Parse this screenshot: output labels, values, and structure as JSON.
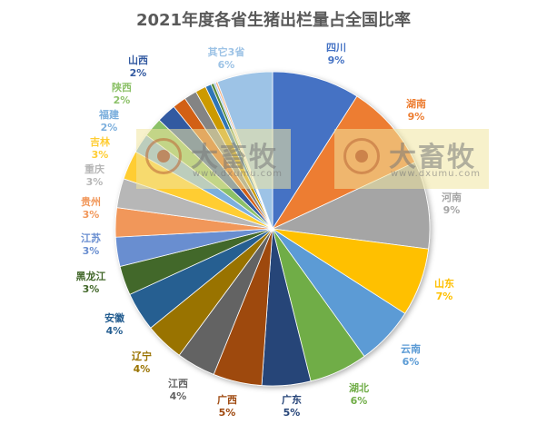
{
  "chart_data": {
    "type": "pie",
    "title": "2021年度各省生猪出栏量占全国比率",
    "slices": [
      {
        "name": "四川",
        "label": "9%",
        "value": 9,
        "color": "#4472C4",
        "label_color": "#4472C4"
      },
      {
        "name": "湖南",
        "label": "9%",
        "value": 9,
        "color": "#ED7D31",
        "label_color": "#ED7D31"
      },
      {
        "name": "河南",
        "label": "9%",
        "value": 9,
        "color": "#A5A5A5",
        "label_color": "#A5A5A5"
      },
      {
        "name": "山东",
        "label": "7%",
        "value": 7,
        "color": "#FFC000",
        "label_color": "#FFC000"
      },
      {
        "name": "云南",
        "label": "6%",
        "value": 6,
        "color": "#5B9BD5",
        "label_color": "#5B9BD5"
      },
      {
        "name": "湖北",
        "label": "6%",
        "value": 6,
        "color": "#70AD47",
        "label_color": "#70AD47"
      },
      {
        "name": "广东",
        "label": "5%",
        "value": 5,
        "color": "#264478",
        "label_color": "#264478"
      },
      {
        "name": "广西",
        "label": "5%",
        "value": 5,
        "color": "#9E480E",
        "label_color": "#9E480E"
      },
      {
        "name": "江西",
        "label": "4%",
        "value": 4,
        "color": "#636363",
        "label_color": "#636363"
      },
      {
        "name": "辽宁",
        "label": "4%",
        "value": 4,
        "color": "#997300",
        "label_color": "#997300"
      },
      {
        "name": "安徽",
        "label": "4%",
        "value": 4,
        "color": "#255E91",
        "label_color": "#255E91"
      },
      {
        "name": "黑龙江",
        "label": "3%",
        "value": 3,
        "color": "#43682B",
        "label_color": "#43682B"
      },
      {
        "name": "江苏",
        "label": "3%",
        "value": 3,
        "color": "#698ED0",
        "label_color": "#698ED0"
      },
      {
        "name": "贵州",
        "label": "3%",
        "value": 3,
        "color": "#F1975A",
        "label_color": "#F1975A"
      },
      {
        "name": "重庆",
        "label": "3%",
        "value": 3,
        "color": "#B7B7B7",
        "label_color": "#B7B7B7"
      },
      {
        "name": "吉林",
        "label": "3%",
        "value": 3,
        "color": "#FFCD33",
        "label_color": "#FFCD33"
      },
      {
        "name": "福建",
        "label": "2%",
        "value": 2,
        "color": "#7CAFDD",
        "label_color": "#7CAFDD"
      },
      {
        "name": "陕西",
        "label": "2%",
        "value": 2,
        "color": "#8CC168",
        "label_color": "#8CC168"
      },
      {
        "name": "山西",
        "label": "2%",
        "value": 2,
        "color": "#335AA1",
        "label_color": "#335AA1"
      },
      {
        "name": "",
        "label": "",
        "value": 1.4,
        "color": "#D26012"
      },
      {
        "name": "",
        "label": "",
        "value": 1.3,
        "color": "#848484"
      },
      {
        "name": "",
        "label": "",
        "value": 1.1,
        "color": "#CC9A00"
      },
      {
        "name": "",
        "label": "",
        "value": 0.6,
        "color": "#2E75B6"
      },
      {
        "name": "",
        "label": "",
        "value": 0.3,
        "color": "#5A8A39"
      },
      {
        "name": "",
        "label": "",
        "value": 0.2,
        "color": "#A9C4EB"
      },
      {
        "name": "",
        "label": "",
        "value": 0.2,
        "color": "#F4B183"
      },
      {
        "name": "其它3省",
        "label": "6%",
        "value": 5.7,
        "color": "#9DC3E6",
        "label_color": "#9DC3E6"
      }
    ]
  },
  "watermark": {
    "brand": "大畜牧",
    "url": "www.dxumu.com"
  }
}
